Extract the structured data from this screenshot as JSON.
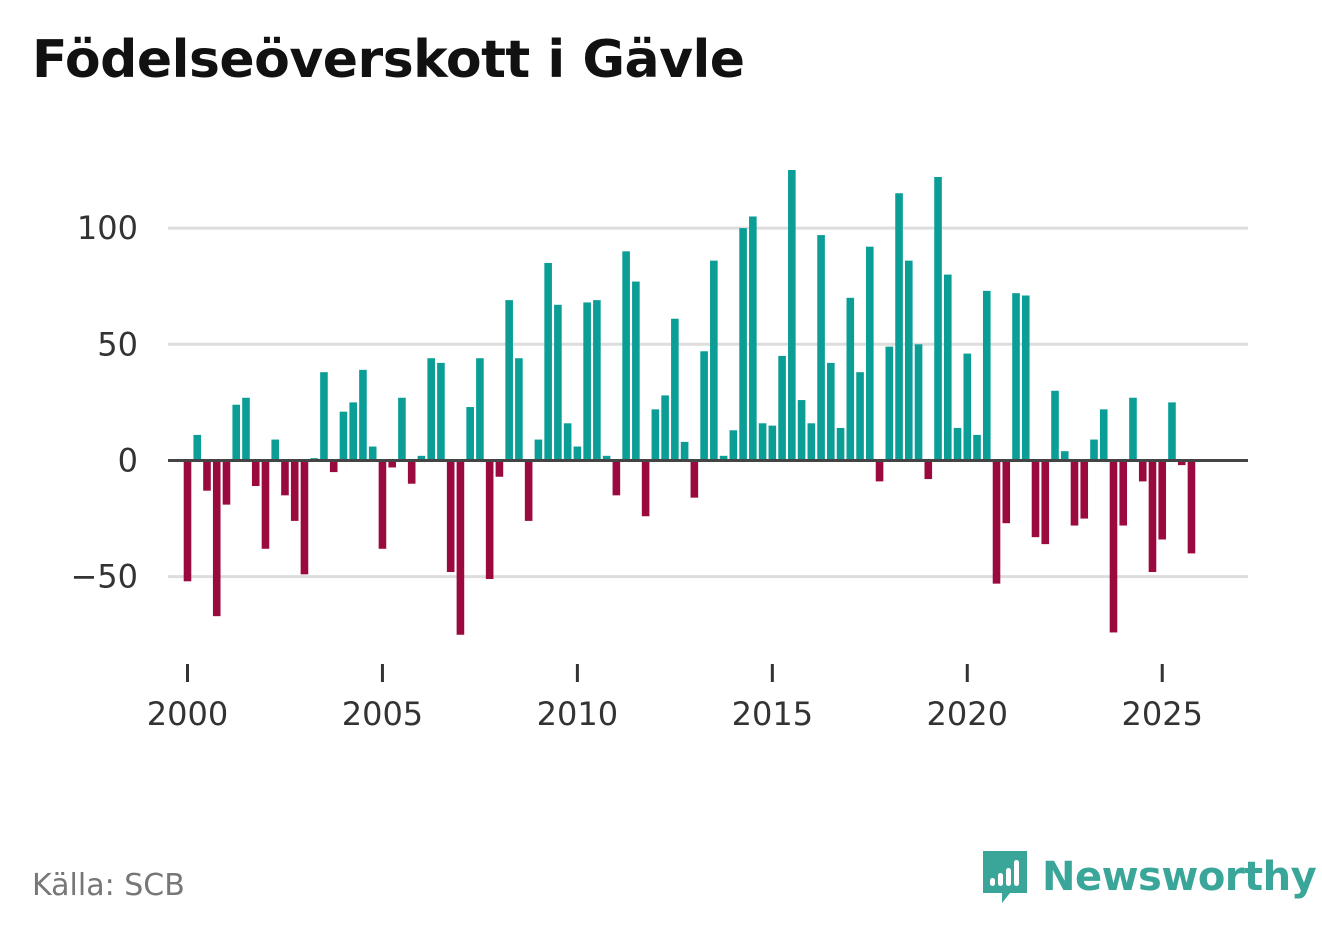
{
  "chart_data": {
    "type": "bar",
    "title": "Födelseöverskott i Gävle",
    "xlabel": "",
    "ylabel": "",
    "ylim": [
      -85,
      125
    ],
    "yticks": [
      -50,
      0,
      50,
      100
    ],
    "ytick_labels": [
      "−50",
      "0",
      "50",
      "100"
    ],
    "xlim": [
      1999.5,
      2027.2
    ],
    "xticks": [
      2000,
      2005,
      2010,
      2015,
      2020,
      2025
    ],
    "xtick_labels": [
      "2000",
      "2005",
      "2010",
      "2015",
      "2020",
      "2025"
    ],
    "colors": {
      "positive": "#0b9e96",
      "negative": "#9b0a3f",
      "grid": "#dddddd",
      "zero": "#444444"
    },
    "series": [
      {
        "name": "Födelseöverskott",
        "frequency": "quarterly",
        "start": "2000Q1",
        "values": [
          -52,
          11,
          -13,
          -67,
          -19,
          24,
          27,
          -11,
          -38,
          9,
          -15,
          -26,
          -49,
          1,
          38,
          -5,
          21,
          25,
          39,
          6,
          -38,
          -3,
          27,
          -10,
          2,
          44,
          42,
          -48,
          -75,
          23,
          44,
          -51,
          -7,
          69,
          44,
          -26,
          9,
          85,
          67,
          16,
          6,
          68,
          69,
          2,
          -15,
          90,
          77,
          -24,
          22,
          28,
          61,
          8,
          -16,
          47,
          86,
          2,
          13,
          100,
          105,
          16,
          15,
          45,
          125,
          26,
          16,
          97,
          42,
          14,
          70,
          38,
          92,
          -9,
          49,
          115,
          86,
          50,
          -8,
          122,
          80,
          14,
          46,
          11,
          73,
          -53,
          -27,
          72,
          71,
          -33,
          -36,
          30,
          4,
          -28,
          -25,
          9,
          22,
          -74,
          -28,
          27,
          -9,
          -48,
          -34,
          25,
          -2,
          -40
        ]
      }
    ]
  },
  "source_label": "Källa: SCB",
  "brand": {
    "name": "Newsworthy",
    "icon": "newsworthy-logo-icon"
  }
}
